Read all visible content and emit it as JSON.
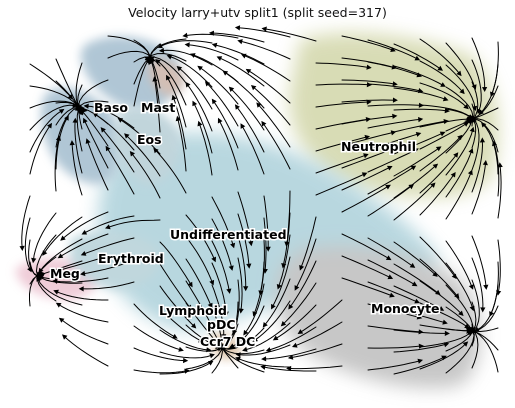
{
  "plot": {
    "title": "Velocity larry+utv split1 (split seed=317)",
    "labels": {
      "baso": "Baso",
      "mast": "Mast",
      "eos": "Eos",
      "neutrophil": "Neutrophil",
      "undifferentiated": "Undifferentiated",
      "erythroid": "Erythroid",
      "meg": "Meg",
      "lymphoid": "Lymphoid",
      "pdc": "pDC",
      "ccr7dc": "Ccr7 DC",
      "monocyte": "Monocyte"
    }
  },
  "colors": {
    "undifferentiated": "#7fb7c6",
    "neutrophil": "#b9c07a",
    "monocyte": "#9a9a9a",
    "baso": "#6f98b3",
    "mast": "#b08a78",
    "meg": "#e2a3b8",
    "erythroid": "#8db7c2",
    "eos": "#8fb3bf",
    "pdc": "#c49a6c",
    "streamline": "#000000"
  }
}
